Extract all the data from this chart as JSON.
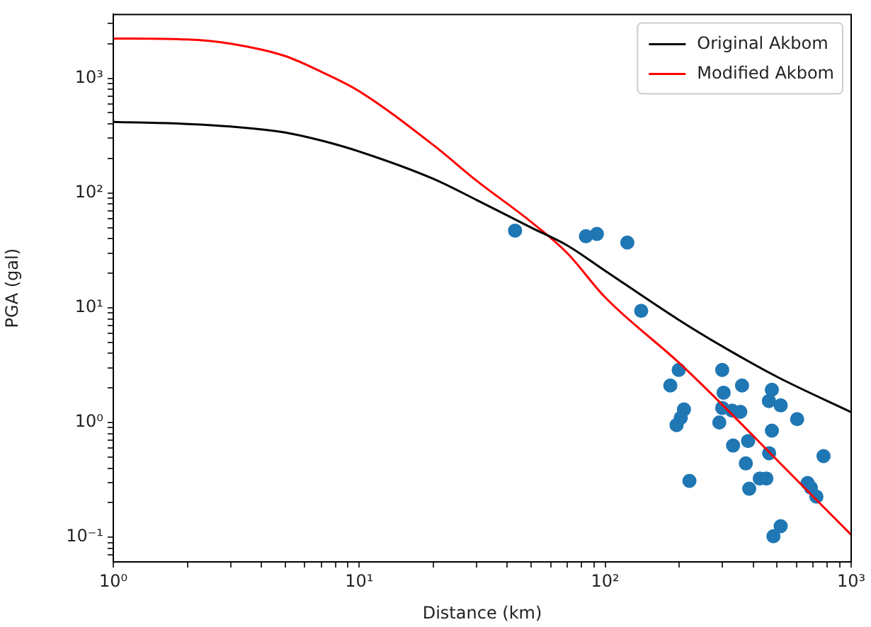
{
  "chart_data": {
    "type": "line",
    "xlabel": "Distance (km)",
    "ylabel": "PGA (gal)",
    "log": "xy",
    "grid": false,
    "legend": "top right",
    "xlim": [
      1,
      1000
    ],
    "ylim": [
      0.061,
      3600
    ],
    "xticks": [
      {
        "value": 1,
        "label": "10⁰"
      },
      {
        "value": 2,
        "label": null
      },
      {
        "value": 3,
        "label": null
      },
      {
        "value": 4,
        "label": null
      },
      {
        "value": 5,
        "label": null
      },
      {
        "value": 6,
        "label": null
      },
      {
        "value": 7,
        "label": null
      },
      {
        "value": 8,
        "label": null
      },
      {
        "value": 9,
        "label": null
      },
      {
        "value": 10,
        "label": "10¹"
      },
      {
        "value": 20,
        "label": null
      },
      {
        "value": 30,
        "label": null
      },
      {
        "value": 40,
        "label": null
      },
      {
        "value": 50,
        "label": null
      },
      {
        "value": 60,
        "label": null
      },
      {
        "value": 70,
        "label": null
      },
      {
        "value": 80,
        "label": null
      },
      {
        "value": 90,
        "label": null
      },
      {
        "value": 100,
        "label": "10²"
      },
      {
        "value": 200,
        "label": null
      },
      {
        "value": 300,
        "label": null
      },
      {
        "value": 400,
        "label": null
      },
      {
        "value": 500,
        "label": null
      },
      {
        "value": 600,
        "label": null
      },
      {
        "value": 700,
        "label": null
      },
      {
        "value": 800,
        "label": null
      },
      {
        "value": 900,
        "label": null
      },
      {
        "value": 1000,
        "label": "10³"
      }
    ],
    "yticks": [
      {
        "value": 0.07,
        "label": null
      },
      {
        "value": 0.08,
        "label": null
      },
      {
        "value": 0.09,
        "label": null
      },
      {
        "value": 0.1,
        "label": "10⁻¹"
      },
      {
        "value": 0.2,
        "label": null
      },
      {
        "value": 0.3,
        "label": null
      },
      {
        "value": 0.4,
        "label": null
      },
      {
        "value": 0.5,
        "label": null
      },
      {
        "value": 0.6,
        "label": null
      },
      {
        "value": 0.7,
        "label": null
      },
      {
        "value": 0.8,
        "label": null
      },
      {
        "value": 0.9,
        "label": null
      },
      {
        "value": 1,
        "label": "10⁰"
      },
      {
        "value": 2,
        "label": null
      },
      {
        "value": 3,
        "label": null
      },
      {
        "value": 4,
        "label": null
      },
      {
        "value": 5,
        "label": null
      },
      {
        "value": 6,
        "label": null
      },
      {
        "value": 7,
        "label": null
      },
      {
        "value": 8,
        "label": null
      },
      {
        "value": 9,
        "label": null
      },
      {
        "value": 10,
        "label": "10¹"
      },
      {
        "value": 20,
        "label": null
      },
      {
        "value": 30,
        "label": null
      },
      {
        "value": 40,
        "label": null
      },
      {
        "value": 50,
        "label": null
      },
      {
        "value": 60,
        "label": null
      },
      {
        "value": 70,
        "label": null
      },
      {
        "value": 80,
        "label": null
      },
      {
        "value": 90,
        "label": null
      },
      {
        "value": 100,
        "label": "10²"
      },
      {
        "value": 200,
        "label": null
      },
      {
        "value": 300,
        "label": null
      },
      {
        "value": 400,
        "label": null
      },
      {
        "value": 500,
        "label": null
      },
      {
        "value": 600,
        "label": null
      },
      {
        "value": 700,
        "label": null
      },
      {
        "value": 800,
        "label": null
      },
      {
        "value": 900,
        "label": null
      },
      {
        "value": 1000,
        "label": "10³"
      },
      {
        "value": 2000,
        "label": null
      },
      {
        "value": 3000,
        "label": null
      }
    ],
    "series": [
      {
        "name": "Original Akbom",
        "color": "#000000",
        "line_style": "solid",
        "x": [
          1,
          2,
          3,
          5,
          7,
          10,
          20,
          30,
          50,
          70,
          100,
          200,
          300,
          500,
          1000
        ],
        "values": [
          417,
          400,
          380,
          337,
          287,
          230,
          133,
          87,
          50,
          35,
          21,
          7.8,
          4.6,
          2.5,
          1.23
        ]
      },
      {
        "name": "Modified Akbom",
        "color": "#ff0000",
        "line_style": "solid",
        "x": [
          1,
          2,
          3,
          5,
          7,
          10,
          20,
          30,
          50,
          70,
          100,
          200,
          300,
          500,
          1000
        ],
        "values": [
          2220,
          2180,
          2000,
          1560,
          1140,
          770,
          262,
          128,
          56,
          30,
          12.3,
          3.3,
          1.42,
          0.47,
          0.105
        ]
      },
      {
        "type": "scatter",
        "color": "#1f77b4",
        "marker": "circle",
        "x": [
          43,
          83.5,
          92.5,
          123,
          140,
          199,
          184,
          209,
          203,
          195,
          220,
          299,
          303,
          360,
          299,
          328,
          354,
          291,
          331,
          381,
          373,
          385,
          425,
          452,
          476,
          463,
          517,
          476,
          464,
          603,
          483,
          517,
          665,
          686,
          722,
          772
        ],
        "values": [
          47,
          42,
          44,
          37,
          9.4,
          2.87,
          2.1,
          1.3,
          1.1,
          0.95,
          0.31,
          2.87,
          1.82,
          2.1,
          1.34,
          1.27,
          1.24,
          1.0,
          0.63,
          0.69,
          0.44,
          0.265,
          0.325,
          0.325,
          1.93,
          1.54,
          1.41,
          0.85,
          0.54,
          1.07,
          0.102,
          0.125,
          0.297,
          0.27,
          0.226,
          0.51
        ]
      }
    ]
  }
}
